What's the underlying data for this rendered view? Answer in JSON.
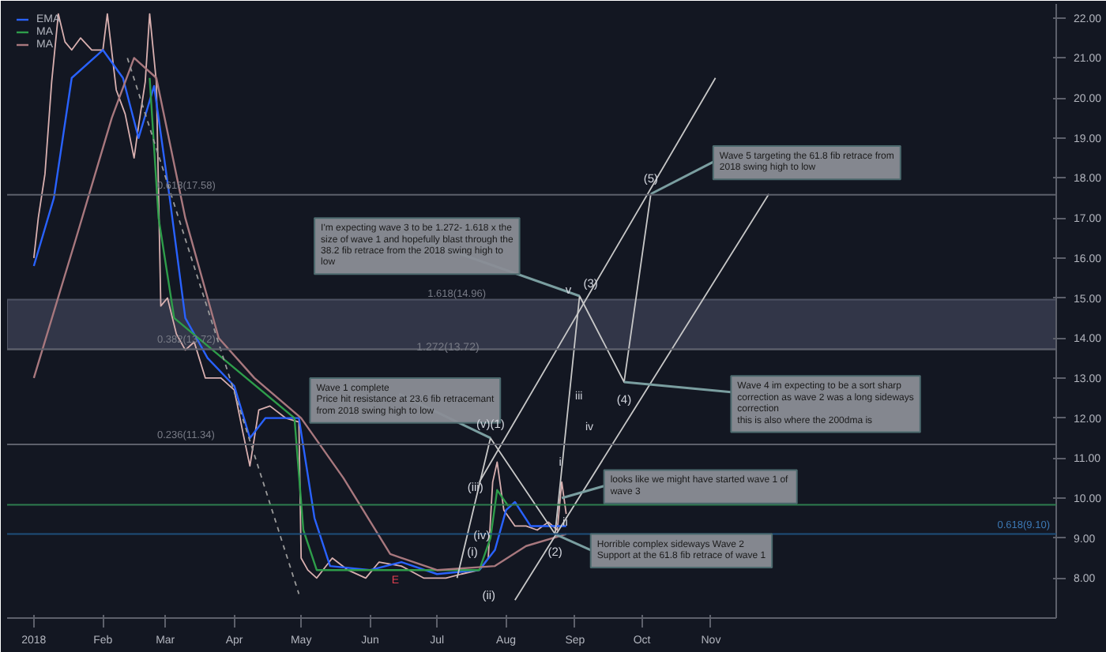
{
  "chart_data": {
    "type": "line",
    "xlim": [
      "2017-12-20",
      "2019-04-05"
    ],
    "xticks": [
      {
        "value": "2018-01-01",
        "label": "2018"
      },
      {
        "value": "2018-02-01",
        "label": "Feb"
      },
      {
        "value": "2018-03-01",
        "label": "Mar"
      },
      {
        "value": "2018-04-01",
        "label": "Apr"
      },
      {
        "value": "2018-05-01",
        "label": "May"
      },
      {
        "value": "2018-06-01",
        "label": "Jun"
      },
      {
        "value": "2018-07-01",
        "label": "Jul"
      },
      {
        "value": "2018-08-01",
        "label": "Aug"
      },
      {
        "value": "2018-09-01",
        "label": "Sep"
      },
      {
        "value": "2018-10-01",
        "label": "Oct"
      },
      {
        "value": "2018-11-01",
        "label": "Nov"
      }
    ],
    "ylim": [
      7.0,
      22.35
    ],
    "yticks": [
      {
        "value": 8,
        "label": "8.00"
      },
      {
        "value": 9,
        "label": "9.00"
      },
      {
        "value": 10,
        "label": "10.00"
      },
      {
        "value": 11,
        "label": "11.00"
      },
      {
        "value": 12,
        "label": "12.00"
      },
      {
        "value": 13,
        "label": "13.00"
      },
      {
        "value": 14,
        "label": "14.00"
      },
      {
        "value": 15,
        "label": "15.00"
      },
      {
        "value": 16,
        "label": "16.00"
      },
      {
        "value": 17,
        "label": "17.00"
      },
      {
        "value": 18,
        "label": "18.00"
      },
      {
        "value": 19,
        "label": "19.00"
      },
      {
        "value": 20,
        "label": "20.00"
      },
      {
        "value": 21,
        "label": "21.00"
      },
      {
        "value": 22,
        "label": "22.00"
      }
    ],
    "grid": false,
    "legend": "top left",
    "series": [
      {
        "color": "#d9b0b0",
        "x": [
          "2018-01-01",
          "2018-01-03",
          "2018-01-06",
          "2018-01-09",
          "2018-01-12",
          "2018-01-15",
          "2018-01-18",
          "2018-01-22",
          "2018-01-27",
          "2018-02-01",
          "2018-02-03",
          "2018-02-07",
          "2018-02-11",
          "2018-02-15",
          "2018-02-17",
          "2018-02-20",
          "2018-02-22",
          "2018-02-25",
          "2018-02-27",
          "2018-03-02",
          "2018-03-06",
          "2018-03-10",
          "2018-03-14",
          "2018-03-19",
          "2018-03-26",
          "2018-04-01",
          "2018-04-05",
          "2018-04-08",
          "2018-04-12",
          "2018-04-17",
          "2018-04-24",
          "2018-04-30",
          "2018-05-01",
          "2018-05-04",
          "2018-05-08",
          "2018-05-15",
          "2018-05-22",
          "2018-05-30",
          "2018-06-05",
          "2018-06-15",
          "2018-06-25",
          "2018-07-05",
          "2018-07-12",
          "2018-07-20",
          "2018-07-24",
          "2018-07-26",
          "2018-07-28",
          "2018-07-31",
          "2018-08-05",
          "2018-08-10",
          "2018-08-15",
          "2018-08-20",
          "2018-08-24",
          "2018-08-26",
          "2018-08-28"
        ],
        "values": [
          16.0,
          17.0,
          18.1,
          20.4,
          22.1,
          21.4,
          21.2,
          21.5,
          21.2,
          21.2,
          22.1,
          20.2,
          19.6,
          18.5,
          19.3,
          20.4,
          22.1,
          20.4,
          14.8,
          15.0,
          14.1,
          13.7,
          13.9,
          13.0,
          13.0,
          12.7,
          11.6,
          10.8,
          12.2,
          12.3,
          12.0,
          11.9,
          8.5,
          8.2,
          8.0,
          8.5,
          8.2,
          8.0,
          8.4,
          8.3,
          8.0,
          8.0,
          8.1,
          8.2,
          8.5,
          10.4,
          10.9,
          9.7,
          9.3,
          9.3,
          9.2,
          9.4,
          9.2,
          10.4,
          9.6
        ]
      },
      {
        "name": "EMA",
        "color": "#2962ff",
        "x": [
          "2018-01-01",
          "2018-01-10",
          "2018-01-18",
          "2018-02-01",
          "2018-02-10",
          "2018-02-17",
          "2018-02-24",
          "2018-03-03",
          "2018-03-10",
          "2018-03-20",
          "2018-04-01",
          "2018-04-08",
          "2018-04-15",
          "2018-04-30",
          "2018-05-07",
          "2018-05-14",
          "2018-06-01",
          "2018-06-15",
          "2018-07-01",
          "2018-07-20",
          "2018-07-27",
          "2018-08-01",
          "2018-08-05",
          "2018-08-12",
          "2018-08-28"
        ],
        "values": [
          15.8,
          17.5,
          20.5,
          21.2,
          20.5,
          19.0,
          20.3,
          17.5,
          14.5,
          13.5,
          12.8,
          11.5,
          12.0,
          12.0,
          9.5,
          8.3,
          8.2,
          8.4,
          8.1,
          8.2,
          8.7,
          9.7,
          9.9,
          9.3,
          9.3
        ]
      },
      {
        "name": "MA",
        "color": "#2e9d4a",
        "x": [
          "2018-02-22",
          "2018-02-26",
          "2018-03-05",
          "2018-04-28",
          "2018-05-02",
          "2018-05-08",
          "2018-07-20",
          "2018-07-25",
          "2018-07-28",
          "2018-08-02"
        ],
        "values": [
          20.5,
          17.0,
          14.5,
          12.0,
          9.2,
          8.2,
          8.2,
          9.0,
          10.2,
          9.8
        ]
      },
      {
        "name": "MA",
        "color": "#a8787e",
        "x": [
          "2018-01-01",
          "2018-01-20",
          "2018-02-05",
          "2018-02-15",
          "2018-02-25",
          "2018-03-10",
          "2018-03-25",
          "2018-04-10",
          "2018-05-01",
          "2018-05-20",
          "2018-06-10",
          "2018-07-01",
          "2018-07-27",
          "2018-08-10",
          "2018-08-28"
        ],
        "values": [
          13.0,
          16.5,
          19.5,
          21.0,
          20.5,
          17.0,
          14.0,
          13.0,
          12.0,
          10.5,
          8.6,
          8.2,
          8.3,
          8.8,
          9.1
        ]
      },
      {
        "color": "#9a9a9a",
        "line_style": "dashed",
        "x": [
          "2018-02-12",
          "2018-04-30"
        ],
        "values": [
          21.0,
          7.6
        ]
      },
      {
        "color": "#c8c8c8",
        "x": [
          "2018-08-23",
          "2018-09-03",
          "2018-09-23",
          "2018-10-05"
        ],
        "values": [
          9.1,
          15.05,
          12.9,
          17.6
        ]
      },
      {
        "color": "#c8c8c8",
        "x": [
          "2018-07-10",
          "2018-07-25",
          "2018-08-23"
        ],
        "values": [
          8.0,
          11.5,
          9.1
        ]
      },
      {
        "color": "#c8c8c8",
        "x": [
          "2018-07-20",
          "2018-11-03"
        ],
        "values": [
          10.4,
          20.5
        ]
      },
      {
        "color": "#c8c8c8",
        "x": [
          "2018-08-05",
          "2018-11-27"
        ],
        "values": [
          7.45,
          17.6
        ]
      }
    ],
    "ref_lines": [
      {
        "axis": "y",
        "value": 17.58,
        "label": "0.618(17.58)",
        "color": "#5d606b"
      },
      {
        "axis": "y",
        "value": 13.72,
        "label": "0.382(13.72)",
        "color": "#5d606b"
      },
      {
        "axis": "y",
        "value": 11.34,
        "label": "0.236(11.34)",
        "color": "#5d606b"
      },
      {
        "axis": "y",
        "value": 9.83,
        "color": "#2e7d4f"
      },
      {
        "axis": "y",
        "value": 9.1,
        "label": "0.618(9.10)",
        "color": "#1f4f7a"
      }
    ],
    "bands": [
      {
        "axis": "y",
        "from": 13.72,
        "to": 14.96,
        "label": "1.618(14.96)",
        "color": "#3b3f52"
      }
    ],
    "annotations": [
      {
        "text": "I'm expecting wave 3 to be 1.272- 1.618 x the size of wave 1 and hopefully blast through the 38.2 fib retrace from the 2018 swing high to low",
        "x": "2018-09-03",
        "y": 15.05
      },
      {
        "text": "Wave 5 targeting the 61.8 fib retrace from 2018 swing high to low",
        "x": "2018-10-05",
        "y": 17.6
      },
      {
        "text": "Wave 1 complete\nPrice hit resistance at 23.6 fib retracemant from 2018 swing high to low",
        "x": "2018-07-25",
        "y": 11.5
      },
      {
        "text": "Wave 4 im expecting to be a sort sharp correction as wave 2 was a long sideways correction\nthis is also where the 200dma is",
        "x": "2018-09-23",
        "y": 12.9
      },
      {
        "text": "looks like we might have started  wave 1 of wave 3",
        "x": "2018-08-26",
        "y": 10.0
      },
      {
        "text": "Horrible complex sideways Wave 2\nSupport at the 61.8 fib retrace of wave 1",
        "x": "2018-08-23",
        "y": 9.1
      },
      {
        "text": "(v)(1)",
        "x": "2018-07-25",
        "y": 11.5
      },
      {
        "text": "(iii)",
        "x": "2018-07-26",
        "y": 10.4
      },
      {
        "text": "(i)",
        "x": "2018-07-24",
        "y": 8.5
      },
      {
        "text": "(iv)",
        "x": "2018-07-31",
        "y": 9.7
      },
      {
        "text": "(ii)",
        "x": "2018-07-20",
        "y": 8.2
      },
      {
        "text": "(2)",
        "x": "2018-08-23",
        "y": 9.1
      },
      {
        "text": "(3)",
        "x": "2018-09-03",
        "y": 15.05
      },
      {
        "text": "v",
        "x": "2018-09-03",
        "y": 15.05
      },
      {
        "text": "(4)",
        "x": "2018-09-23",
        "y": 12.9
      },
      {
        "text": "(5)",
        "x": "2018-10-05",
        "y": 17.6
      },
      {
        "text": "i",
        "x": "2018-08-26",
        "y": 10.4
      },
      {
        "text": "ii",
        "x": "2018-08-24",
        "y": 9.2
      },
      "1.272(13.72)",
      "iii",
      "iv",
      "E"
    ]
  }
}
